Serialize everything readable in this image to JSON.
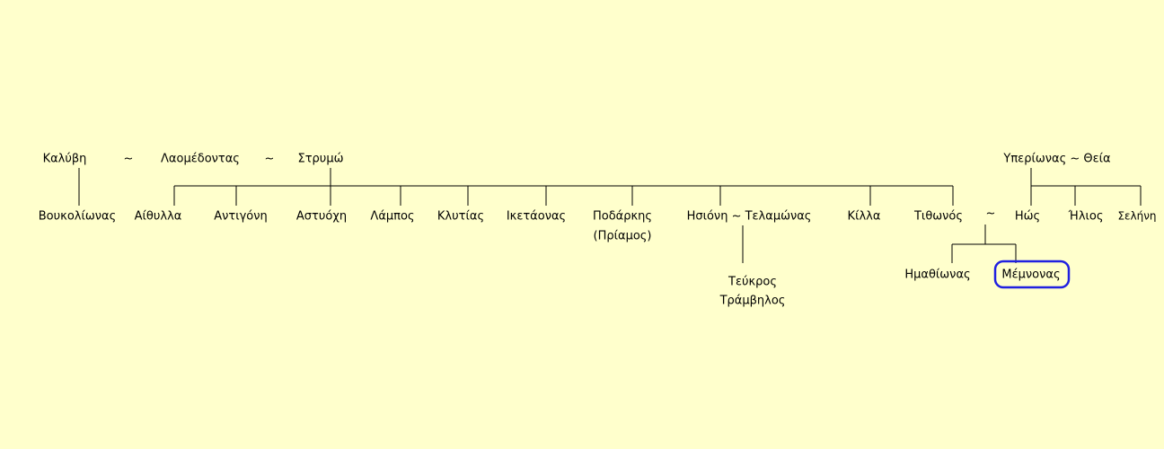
{
  "nodes": [
    "Καλύβη",
    "~",
    "Λαομέδοντας",
    "~",
    "Στρυμώ",
    "Υπερίωνας ~ Θεία",
    "Βουκολίωνας",
    "Αίθυλλα",
    "Αντιγόνη",
    "Αστυόχη",
    "Λάμπος",
    "Κλυτίας",
    "Ικετάονας",
    "Ποδάρκης",
    "(Πρίαμος)",
    "Ησιόνη ~ Τελαμώνας",
    "Κίλλα",
    "Τιθωνός",
    "~",
    "Ηώς",
    "Ήλιος",
    "Σελήνη",
    "Ημαθίωνας",
    "Μέμνονας",
    "Τεύκρος",
    "Τράμβηλος"
  ]
}
